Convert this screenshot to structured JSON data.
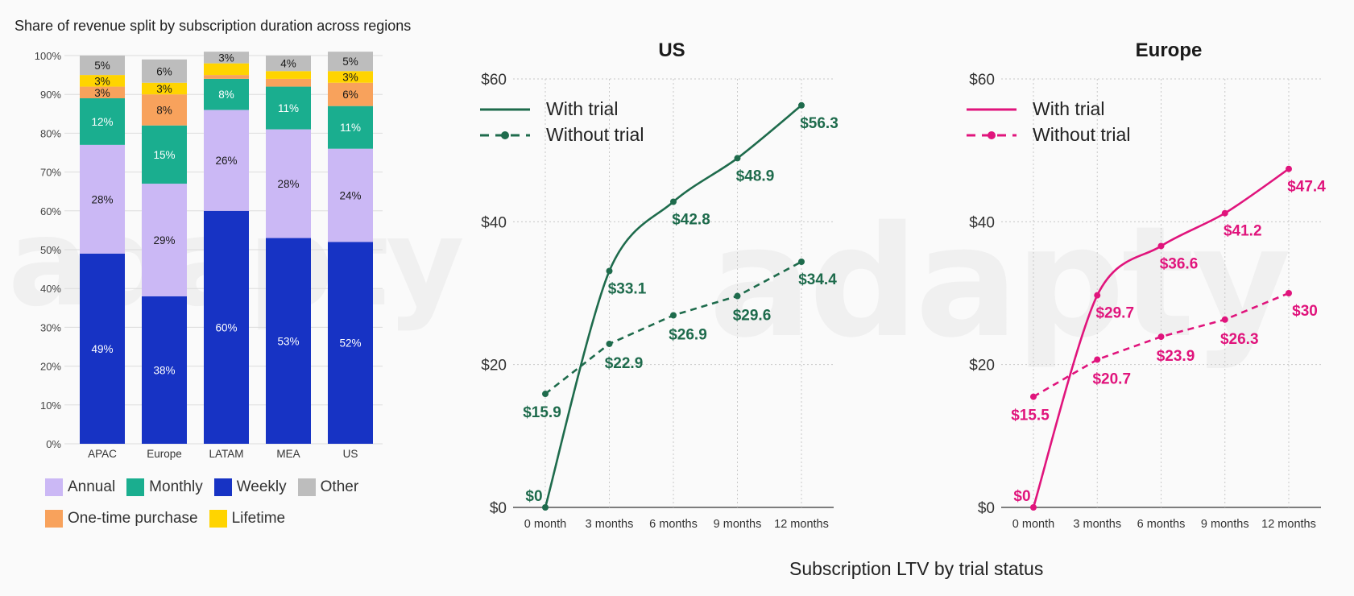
{
  "stacked_title": "Share of revenue split by subscription duration across regions",
  "main_caption": "Subscription LTV by trial status",
  "watermark_text": "adapty",
  "legend": [
    {
      "label": "Annual",
      "color": "#cbb8f5"
    },
    {
      "label": "Monthly",
      "color": "#1aae8f"
    },
    {
      "label": "Weekly",
      "color": "#1733c4"
    },
    {
      "label": "Other",
      "color": "#bdbdbd"
    },
    {
      "label": "One-time purchase",
      "color": "#f8a25c"
    },
    {
      "label": "Lifetime",
      "color": "#ffd400"
    }
  ],
  "chart_data": [
    {
      "type": "bar",
      "stacked": true,
      "title": "Share of revenue split by subscription duration across regions",
      "categories": [
        "APAC",
        "Europe",
        "LATAM",
        "MEA",
        "US"
      ],
      "ylim": [
        0,
        100
      ],
      "yticks": [
        "0%",
        "10%",
        "20%",
        "30%",
        "40%",
        "50%",
        "60%",
        "70%",
        "80%",
        "90%",
        "100%"
      ],
      "series": [
        {
          "name": "Weekly",
          "color": "#1733c4",
          "label_color": "#ffffff",
          "values": [
            49,
            38,
            60,
            53,
            52
          ],
          "labels": [
            "49%",
            "38%",
            "60%",
            "53%",
            "52%"
          ]
        },
        {
          "name": "Annual",
          "color": "#cbb8f5",
          "label_color": "#1a1a1a",
          "values": [
            28,
            29,
            26,
            28,
            24
          ],
          "labels": [
            "28%",
            "29%",
            "26%",
            "28%",
            "24%"
          ]
        },
        {
          "name": "Monthly",
          "color": "#1aae8f",
          "label_color": "#ffffff",
          "values": [
            12,
            15,
            8,
            11,
            11
          ],
          "labels": [
            "12%",
            "15%",
            "8%",
            "11%",
            "11%"
          ]
        },
        {
          "name": "One-time purchase",
          "color": "#f8a25c",
          "label_color": "#1a1a1a",
          "values": [
            3,
            8,
            1,
            2,
            6
          ],
          "labels": [
            "3%",
            "8%",
            "",
            "",
            "6%"
          ]
        },
        {
          "name": "Lifetime",
          "color": "#ffd400",
          "label_color": "#1a1a1a",
          "values": [
            3,
            3,
            3,
            2,
            3
          ],
          "labels": [
            "3%",
            "3%",
            "",
            "",
            "3%"
          ]
        },
        {
          "name": "Other",
          "color": "#bdbdbd",
          "label_color": "#1a1a1a",
          "values": [
            5,
            6,
            3,
            4,
            5
          ],
          "labels": [
            "5%",
            "6%",
            "3%",
            "4%",
            "5%"
          ]
        }
      ]
    },
    {
      "type": "line",
      "title": "US",
      "color": "#1e6b4c",
      "categories": [
        "0 month",
        "3 months",
        "6 months",
        "9 months",
        "12 months"
      ],
      "ylim": [
        0,
        60
      ],
      "yticks": [
        "$0",
        "$20",
        "$40",
        "$60"
      ],
      "series": [
        {
          "name": "With trial",
          "dashed": false,
          "values": [
            0,
            33.1,
            42.8,
            48.9,
            56.3
          ],
          "labels": [
            "$0",
            "$33.1",
            "$42.8",
            "$48.9",
            "$56.3"
          ]
        },
        {
          "name": "Without trial",
          "dashed": true,
          "values": [
            15.9,
            22.9,
            26.9,
            29.6,
            34.4
          ],
          "labels": [
            "$15.9",
            "$22.9",
            "$26.9",
            "$29.6",
            "$34.4"
          ]
        }
      ]
    },
    {
      "type": "line",
      "title": "Europe",
      "color": "#e0147c",
      "categories": [
        "0 month",
        "3 months",
        "6 months",
        "9 months",
        "12 months"
      ],
      "ylim": [
        0,
        60
      ],
      "yticks": [
        "$0",
        "$20",
        "$40",
        "$60"
      ],
      "series": [
        {
          "name": "With trial",
          "dashed": false,
          "values": [
            0,
            29.7,
            36.6,
            41.2,
            47.4
          ],
          "labels": [
            "$0",
            "$29.7",
            "$36.6",
            "$41.2",
            "$47.4"
          ]
        },
        {
          "name": "Without trial",
          "dashed": true,
          "values": [
            15.5,
            20.7,
            23.9,
            26.3,
            30
          ],
          "labels": [
            "$15.5",
            "$20.7",
            "$23.9",
            "$26.3",
            "$30"
          ]
        }
      ]
    }
  ]
}
